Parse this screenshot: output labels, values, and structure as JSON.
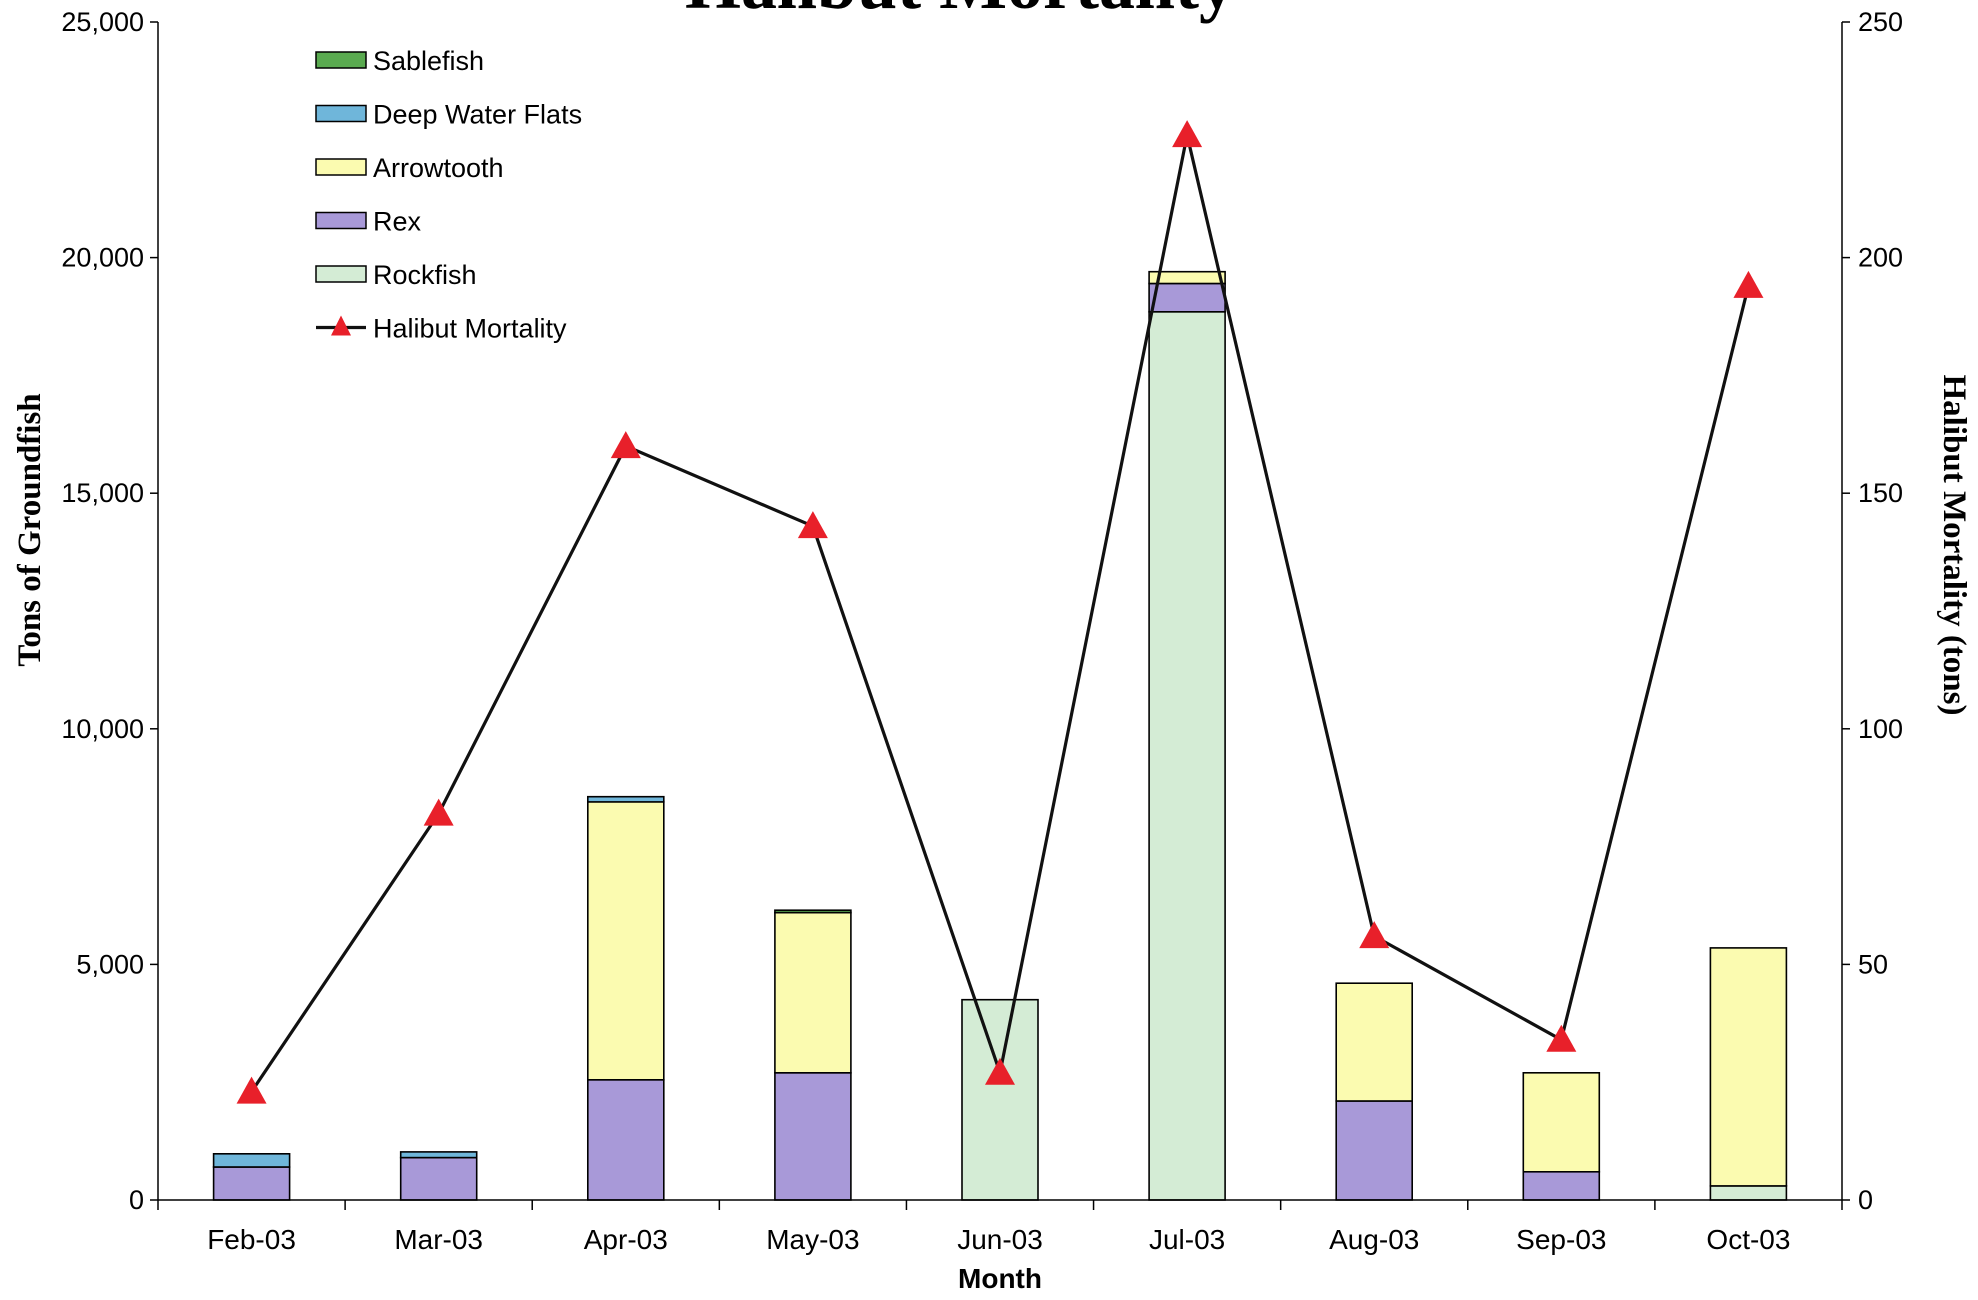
{
  "chart_data": {
    "type": "bar",
    "title": "Halibut Mortality",
    "xlabel": "Month",
    "ylabel": "Tons of Groundfish",
    "y2label": "Halibut Mortality (tons)",
    "categories": [
      "Feb-03",
      "Mar-03",
      "Apr-03",
      "May-03",
      "Jun-03",
      "Jul-03",
      "Aug-03",
      "Sep-03",
      "Oct-03"
    ],
    "ylim": [
      0,
      25000
    ],
    "y2lim": [
      0,
      250
    ],
    "y_ticks": [
      "0",
      "5,000",
      "10,000",
      "15,000",
      "20,000",
      "25,000"
    ],
    "y2_ticks": [
      "0",
      "50",
      "100",
      "150",
      "200",
      "250"
    ],
    "grid": false,
    "legend_position": "top-left",
    "stacked": true,
    "series": [
      {
        "name": "Rockfish",
        "color": "#d4ecd5",
        "values": [
          0,
          0,
          0,
          0,
          4250,
          18850,
          0,
          0,
          300
        ]
      },
      {
        "name": "Rex",
        "color": "#a899d8",
        "values": [
          700,
          900,
          2550,
          2700,
          0,
          600,
          2100,
          600,
          0
        ]
      },
      {
        "name": "Arrowtooth",
        "color": "#fbfbb0",
        "values": [
          0,
          0,
          5900,
          3400,
          0,
          250,
          2500,
          2100,
          5050
        ]
      },
      {
        "name": "Deep Water Flats",
        "color": "#6fb6da",
        "values": [
          280,
          120,
          110,
          0,
          0,
          0,
          0,
          0,
          0
        ]
      },
      {
        "name": "Sablefish",
        "color": "#5aaa50",
        "values": [
          0,
          0,
          0,
          50,
          0,
          0,
          0,
          0,
          0
        ]
      }
    ],
    "line_series": {
      "name": "Halibut Mortality",
      "axis": "right",
      "line_color": "#111111",
      "marker_color": "#e8202a",
      "marker": "triangle",
      "values": [
        23,
        82,
        160,
        143,
        27,
        226,
        56,
        34,
        194
      ]
    },
    "legend_order": [
      "Sablefish",
      "Deep Water Flats",
      "Arrowtooth",
      "Rex",
      "Rockfish",
      "Halibut Mortality"
    ]
  }
}
